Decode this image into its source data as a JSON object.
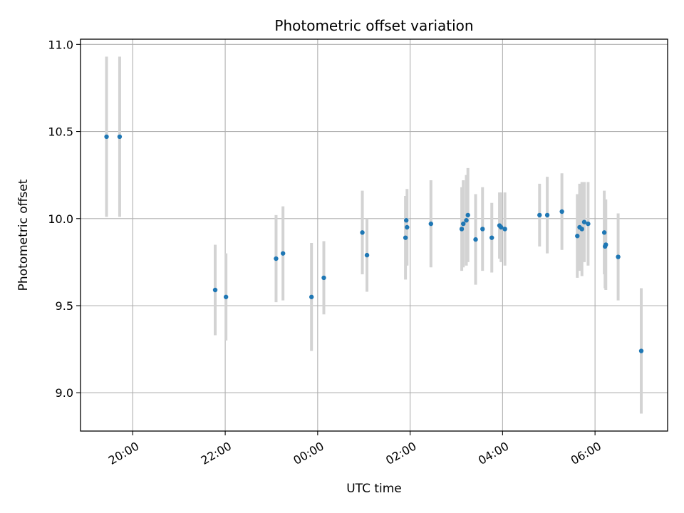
{
  "chart_data": {
    "type": "scatter",
    "title": "Photometric offset variation",
    "xlabel": "UTC time",
    "ylabel": "Photometric offset",
    "x_type": "time",
    "x_ticks": [
      "20:00",
      "22:00",
      "00:00",
      "02:00",
      "04:00",
      "06:00"
    ],
    "x_tick_hours": [
      20,
      22,
      24,
      26,
      28,
      30
    ],
    "xlim_hours": [
      18.87,
      31.57
    ],
    "y_ticks": [
      "9.0",
      "9.5",
      "10.0",
      "10.5",
      "11.0"
    ],
    "y_tick_values": [
      9.0,
      9.5,
      10.0,
      10.5,
      11.0
    ],
    "ylim": [
      8.78,
      11.03
    ],
    "grid": true,
    "point_color": "#1f77b4",
    "errorbar_color": "#d3d3d3",
    "series": [
      {
        "points": [
          {
            "time": "19:26",
            "y": 10.47,
            "yerr": 0.46
          },
          {
            "time": "19:43",
            "y": 10.47,
            "yerr": 0.46
          },
          {
            "time": "21:47",
            "y": 9.59,
            "yerr": 0.26
          },
          {
            "time": "22:01",
            "y": 9.55,
            "yerr": 0.25
          },
          {
            "time": "23:06",
            "y": 9.77,
            "yerr": 0.25
          },
          {
            "time": "23:15",
            "y": 9.8,
            "yerr": 0.27
          },
          {
            "time": "23:52",
            "y": 9.55,
            "yerr": 0.31
          },
          {
            "time": "00:08",
            "y": 9.66,
            "yerr": 0.21
          },
          {
            "time": "00:58",
            "y": 9.92,
            "yerr": 0.24
          },
          {
            "time": "01:04",
            "y": 9.79,
            "yerr": 0.21
          },
          {
            "time": "01:54",
            "y": 9.89,
            "yerr": 0.24
          },
          {
            "time": "01:55",
            "y": 9.99,
            "yerr": 0.14
          },
          {
            "time": "01:56",
            "y": 9.95,
            "yerr": 0.22
          },
          {
            "time": "02:27",
            "y": 9.97,
            "yerr": 0.25
          },
          {
            "time": "03:07",
            "y": 9.94,
            "yerr": 0.24
          },
          {
            "time": "03:09",
            "y": 9.97,
            "yerr": 0.25
          },
          {
            "time": "03:13",
            "y": 9.99,
            "yerr": 0.26
          },
          {
            "time": "03:15",
            "y": 10.02,
            "yerr": 0.27
          },
          {
            "time": "03:25",
            "y": 9.88,
            "yerr": 0.26
          },
          {
            "time": "03:34",
            "y": 9.94,
            "yerr": 0.24
          },
          {
            "time": "03:46",
            "y": 9.89,
            "yerr": 0.2
          },
          {
            "time": "03:56",
            "y": 9.96,
            "yerr": 0.19
          },
          {
            "time": "03:58",
            "y": 9.95,
            "yerr": 0.2
          },
          {
            "time": "04:03",
            "y": 9.94,
            "yerr": 0.21
          },
          {
            "time": "04:48",
            "y": 10.02,
            "yerr": 0.18
          },
          {
            "time": "04:58",
            "y": 10.02,
            "yerr": 0.22
          },
          {
            "time": "05:17",
            "y": 10.04,
            "yerr": 0.22
          },
          {
            "time": "05:37",
            "y": 9.9,
            "yerr": 0.24
          },
          {
            "time": "05:40",
            "y": 9.95,
            "yerr": 0.25
          },
          {
            "time": "05:43",
            "y": 9.94,
            "yerr": 0.27
          },
          {
            "time": "05:46",
            "y": 9.98,
            "yerr": 0.23
          },
          {
            "time": "05:51",
            "y": 9.97,
            "yerr": 0.24
          },
          {
            "time": "06:12",
            "y": 9.92,
            "yerr": 0.24
          },
          {
            "time": "06:13",
            "y": 9.84,
            "yerr": 0.24
          },
          {
            "time": "06:14",
            "y": 9.85,
            "yerr": 0.26
          },
          {
            "time": "06:30",
            "y": 9.78,
            "yerr": 0.25
          },
          {
            "time": "07:00",
            "y": 9.24,
            "yerr": 0.36
          }
        ]
      }
    ]
  }
}
